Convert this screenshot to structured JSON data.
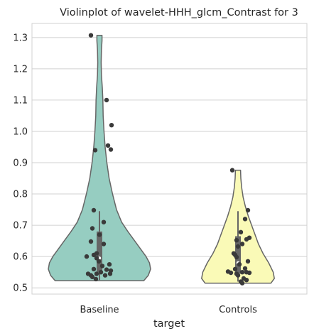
{
  "chart_data": {
    "type": "violin",
    "title": "Violinplot of wavelet-HHH_glcm_Contrast for 3",
    "xlabel": "target",
    "ylabel": "",
    "categories": [
      "Baseline",
      "Controls"
    ],
    "ylim": [
      0.48,
      1.345
    ],
    "yticks": [
      0.5,
      0.6,
      0.7,
      0.8,
      0.9,
      1.0,
      1.1,
      1.2,
      1.3
    ],
    "ytick_labels": [
      "0.5",
      "0.6",
      "0.7",
      "0.8",
      "0.9",
      "1.0",
      "1.1",
      "1.2",
      "1.3"
    ],
    "grid": "horizontal",
    "colors": {
      "Baseline": "#96cdc1",
      "Controls": "#fafab7",
      "outline": "#666666",
      "points": "#3a3a3a",
      "grid": "#d0d0d0"
    },
    "violins": [
      {
        "category": "Baseline",
        "min": 0.523,
        "max": 1.307,
        "box": {
          "whisker_low": 0.525,
          "q1": 0.55,
          "median": 0.595,
          "q3": 0.68,
          "whisker_high": 0.745
        },
        "profile": [
          [
            0.523,
            0.78
          ],
          [
            0.54,
            0.86
          ],
          [
            0.56,
            0.9
          ],
          [
            0.58,
            0.88
          ],
          [
            0.6,
            0.82
          ],
          [
            0.62,
            0.74
          ],
          [
            0.65,
            0.62
          ],
          [
            0.68,
            0.5
          ],
          [
            0.71,
            0.39
          ],
          [
            0.75,
            0.3
          ],
          [
            0.8,
            0.23
          ],
          [
            0.85,
            0.17
          ],
          [
            0.9,
            0.13
          ],
          [
            0.95,
            0.1
          ],
          [
            1.0,
            0.08
          ],
          [
            1.05,
            0.065
          ],
          [
            1.1,
            0.06
          ],
          [
            1.14,
            0.05
          ],
          [
            1.18,
            0.035
          ],
          [
            1.22,
            0.03
          ],
          [
            1.26,
            0.035
          ],
          [
            1.29,
            0.045
          ],
          [
            1.307,
            0.045
          ]
        ],
        "points": [
          [
            -0.12,
            1.307
          ],
          [
            0.1,
            1.1
          ],
          [
            0.17,
            1.02
          ],
          [
            0.12,
            0.955
          ],
          [
            0.16,
            0.942
          ],
          [
            -0.06,
            0.94
          ],
          [
            -0.08,
            0.748
          ],
          [
            0.06,
            0.71
          ],
          [
            -0.1,
            0.69
          ],
          [
            0.0,
            0.67
          ],
          [
            -0.12,
            0.648
          ],
          [
            0.06,
            0.64
          ],
          [
            -0.04,
            0.61
          ],
          [
            -0.08,
            0.605
          ],
          [
            -0.18,
            0.6
          ],
          [
            -0.04,
            0.595
          ],
          [
            -0.01,
            0.585
          ],
          [
            0.14,
            0.575
          ],
          [
            0.04,
            0.57
          ],
          [
            -0.08,
            0.56
          ],
          [
            0.1,
            0.558
          ],
          [
            0.16,
            0.555
          ],
          [
            0.02,
            0.55
          ],
          [
            -0.04,
            0.545
          ],
          [
            -0.16,
            0.545
          ],
          [
            0.15,
            0.545
          ],
          [
            -0.12,
            0.54
          ],
          [
            0.08,
            0.54
          ],
          [
            -0.1,
            0.535
          ],
          [
            -0.05,
            0.528
          ]
        ]
      },
      {
        "category": "Controls",
        "min": 0.515,
        "max": 0.876,
        "box": {
          "whisker_low": 0.52,
          "q1": 0.545,
          "median": 0.58,
          "q3": 0.665,
          "whisker_high": 0.745
        },
        "profile": [
          [
            0.515,
            0.58
          ],
          [
            0.53,
            0.64
          ],
          [
            0.55,
            0.62
          ],
          [
            0.58,
            0.54
          ],
          [
            0.61,
            0.44
          ],
          [
            0.64,
            0.36
          ],
          [
            0.67,
            0.3
          ],
          [
            0.7,
            0.24
          ],
          [
            0.73,
            0.18
          ],
          [
            0.76,
            0.13
          ],
          [
            0.79,
            0.09
          ],
          [
            0.82,
            0.065
          ],
          [
            0.85,
            0.05
          ],
          [
            0.876,
            0.045
          ]
        ],
        "points": [
          [
            -0.08,
            0.876
          ],
          [
            0.14,
            0.748
          ],
          [
            0.1,
            0.72
          ],
          [
            0.04,
            0.678
          ],
          [
            0.16,
            0.66
          ],
          [
            0.12,
            0.655
          ],
          [
            -0.02,
            0.652
          ],
          [
            0.06,
            0.64
          ],
          [
            0.0,
            0.632
          ],
          [
            -0.06,
            0.61
          ],
          [
            -0.04,
            0.605
          ],
          [
            -0.02,
            0.598
          ],
          [
            0.14,
            0.585
          ],
          [
            0.02,
            0.575
          ],
          [
            0.1,
            0.562
          ],
          [
            -0.04,
            0.56
          ],
          [
            -0.14,
            0.552
          ],
          [
            0.06,
            0.55
          ],
          [
            0.12,
            0.55
          ],
          [
            -0.1,
            0.548
          ],
          [
            0.16,
            0.548
          ],
          [
            -0.02,
            0.545
          ],
          [
            0.0,
            0.54
          ],
          [
            0.08,
            0.53
          ],
          [
            0.12,
            0.525
          ],
          [
            0.04,
            0.52
          ],
          [
            0.06,
            0.515
          ]
        ]
      }
    ]
  }
}
